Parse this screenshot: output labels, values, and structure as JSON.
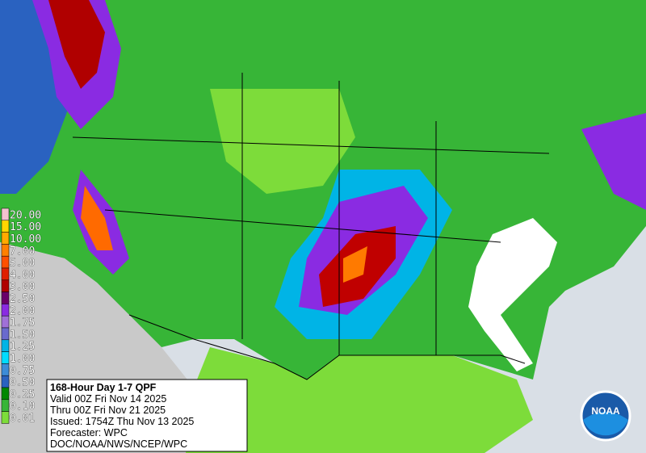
{
  "legend": {
    "items": [
      {
        "label": "20.00",
        "color": "#f4c2cf"
      },
      {
        "label": "15.00",
        "color": "#ffd700"
      },
      {
        "label": "10.00",
        "color": "#ffaa00"
      },
      {
        "label": "7.00",
        "color": "#ff8000"
      },
      {
        "label": "5.00",
        "color": "#ff5000"
      },
      {
        "label": "4.00",
        "color": "#e02000"
      },
      {
        "label": "3.00",
        "color": "#b00000"
      },
      {
        "label": "2.50",
        "color": "#6a006a"
      },
      {
        "label": "2.00",
        "color": "#8a2be2"
      },
      {
        "label": "1.75",
        "color": "#a070d8"
      },
      {
        "label": "1.50",
        "color": "#6a6acd"
      },
      {
        "label": "1.25",
        "color": "#00b4e6"
      },
      {
        "label": "1.00",
        "color": "#00dcff"
      },
      {
        "label": "0.75",
        "color": "#3c8cd8"
      },
      {
        "label": "0.50",
        "color": "#2a62c0"
      },
      {
        "label": "0.25",
        "color": "#008800"
      },
      {
        "label": "0.10",
        "color": "#37b537"
      },
      {
        "label": "0.01",
        "color": "#7ddc3a"
      }
    ]
  },
  "info": {
    "title": "168-Hour Day 1-7 QPF",
    "valid": "Valid 00Z Fri Nov 14 2025",
    "thru": "Thru 00Z Fri Nov 21 2025",
    "issued": "Issued: 1754Z Thu Nov 13 2025",
    "forecaster": "Forecaster: WPC",
    "source": "DOC/NOAA/NWS/NCEP/WPC"
  },
  "logo": "NOAA"
}
